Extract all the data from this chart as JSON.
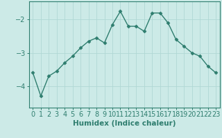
{
  "x": [
    0,
    1,
    2,
    3,
    4,
    5,
    6,
    7,
    8,
    9,
    10,
    11,
    12,
    13,
    14,
    15,
    16,
    17,
    18,
    19,
    20,
    21,
    22,
    23
  ],
  "y": [
    -3.6,
    -4.3,
    -3.7,
    -3.55,
    -3.3,
    -3.1,
    -2.85,
    -2.65,
    -2.55,
    -2.7,
    -2.15,
    -1.75,
    -2.2,
    -2.2,
    -2.35,
    -1.8,
    -1.8,
    -2.1,
    -2.6,
    -2.8,
    -3.0,
    -3.1,
    -3.4,
    -3.6
  ],
  "line_color": "#2e7d6e",
  "marker": "D",
  "marker_size": 2.5,
  "bg_color": "#cceae7",
  "grid_color": "#b0d8d4",
  "axis_color": "#2e7d6e",
  "tick_color": "#2e7d6e",
  "xlabel": "Humidex (Indice chaleur)",
  "yticks": [
    -4,
    -3,
    -2
  ],
  "ylim": [
    -4.65,
    -1.45
  ],
  "xlim": [
    -0.5,
    23.5
  ],
  "xlabel_fontsize": 7.5,
  "tick_fontsize": 7
}
